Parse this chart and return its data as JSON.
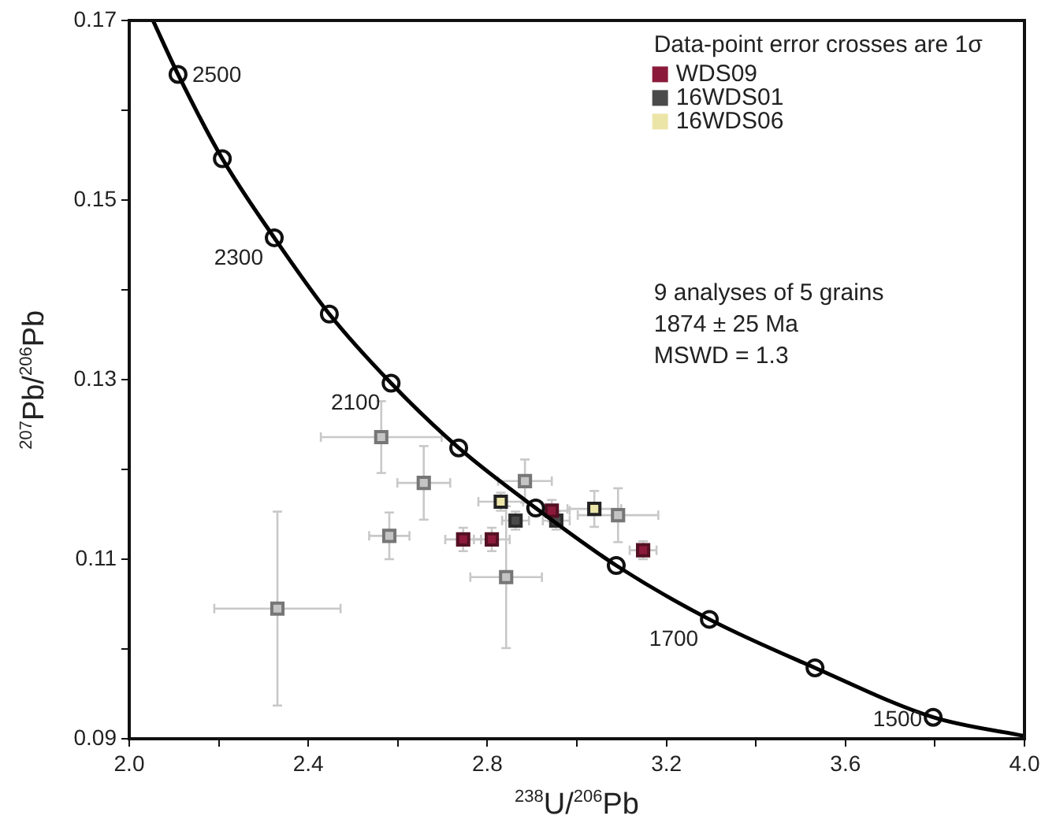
{
  "chart_data": {
    "type": "scatter",
    "xlabel": "$^{238}$U/$^{206}$Pb",
    "ylabel": "$^{207}$Pb/$^{206}$Pb",
    "xlim": [
      2.0,
      4.0
    ],
    "xticks": [
      {
        "value": 2.0,
        "label": "2.0"
      },
      {
        "value": 2.2,
        "label": null
      },
      {
        "value": 2.4,
        "label": "2.4"
      },
      {
        "value": 2.6,
        "label": null
      },
      {
        "value": 2.8,
        "label": "2.8"
      },
      {
        "value": 3.0,
        "label": null
      },
      {
        "value": 3.2,
        "label": "3.2"
      },
      {
        "value": 3.4,
        "label": null
      },
      {
        "value": 3.6,
        "label": "3.6"
      },
      {
        "value": 3.8,
        "label": null
      },
      {
        "value": 4.0,
        "label": "4.0"
      }
    ],
    "ylim": [
      0.09,
      0.17
    ],
    "yticks": [
      0.09,
      {
        "value": 0.1,
        "label": null
      },
      0.11,
      {
        "value": 0.12,
        "label": null
      },
      0.13,
      {
        "value": 0.14,
        "label": null
      },
      0.15,
      {
        "value": 0.16,
        "label": null
      },
      0.17
    ],
    "grid": false,
    "legend": "top right",
    "marker": "square",
    "series": [
      {
        "type": "line",
        "color": "#000000",
        "marker": "none",
        "x": [
          2.053,
          2.109,
          2.208,
          2.324,
          2.447,
          2.585,
          2.736,
          2.908,
          3.088,
          3.296,
          3.532,
          3.796,
          4.0
        ],
        "values": [
          0.17,
          0.164,
          0.1546,
          0.1458,
          0.1373,
          0.1296,
          0.1224,
          0.1157,
          0.1093,
          0.1033,
          0.0979,
          0.0924,
          0.0903
        ]
      },
      {
        "type": "scatter",
        "color": "#ffffff",
        "marker": "circle",
        "x": [
          2.109,
          2.208,
          2.324,
          2.447,
          2.585,
          2.736,
          2.908,
          3.088,
          3.296,
          3.532,
          3.796
        ],
        "values": [
          0.164,
          0.1546,
          0.1458,
          0.1373,
          0.1296,
          0.1224,
          0.1157,
          0.1093,
          0.1033,
          0.0979,
          0.0924
        ]
      },
      {
        "color": "#c4c4c4",
        "x": [
          2.563,
          2.658,
          2.581,
          2.884,
          3.092,
          2.842,
          2.331
        ],
        "values": [
          0.1236,
          0.1185,
          0.1126,
          0.1187,
          0.1149,
          0.108,
          0.1045
        ],
        "xerrors": [
          0.135,
          0.059,
          0.045,
          0.06,
          0.09,
          0.08,
          0.141
        ],
        "errors": [
          0.004,
          0.0041,
          0.0026,
          0.0024,
          0.003,
          0.0079,
          0.0108
        ]
      },
      {
        "name": "WDS09",
        "color": "#8b1a3a",
        "x": [
          2.746,
          2.81,
          2.944,
          3.148
        ],
        "values": [
          0.1122,
          0.1122,
          0.1154,
          0.111
        ],
        "xerrors": [
          0.04,
          0.04,
          0.04,
          0.03
        ],
        "errors": [
          0.0013,
          0.0013,
          0.0012,
          0.001
        ]
      },
      {
        "name": "16WDS01",
        "color": "#4a4a4a",
        "x": [
          2.863,
          2.954
        ],
        "values": [
          0.1143,
          0.1143
        ],
        "xerrors": [
          0.03,
          0.03
        ],
        "errors": [
          0.001,
          0.001
        ]
      },
      {
        "name": "16WDS06",
        "color": "#ece5a8",
        "x": [
          2.83,
          3.039
        ],
        "values": [
          0.1164,
          0.1156
        ],
        "xerrors": [
          0.05,
          0.06
        ],
        "errors": [
          0.001,
          0.002
        ]
      }
    ],
    "annotations": [
      "Data-point error crosses are 1σ",
      "9 analyses of 5 grains",
      "1874 ± 25 Ma",
      "MSWD = 1.3",
      {
        "text": "2500",
        "x": 2.109,
        "y": 0.164
      },
      {
        "text": "2300",
        "x": 2.324,
        "y": 0.1458
      },
      {
        "text": "2100",
        "x": 2.585,
        "y": 0.1296
      },
      {
        "text": "1700",
        "x": 3.296,
        "y": 0.1033
      },
      {
        "text": "1500",
        "x": 3.796,
        "y": 0.0924
      }
    ]
  }
}
